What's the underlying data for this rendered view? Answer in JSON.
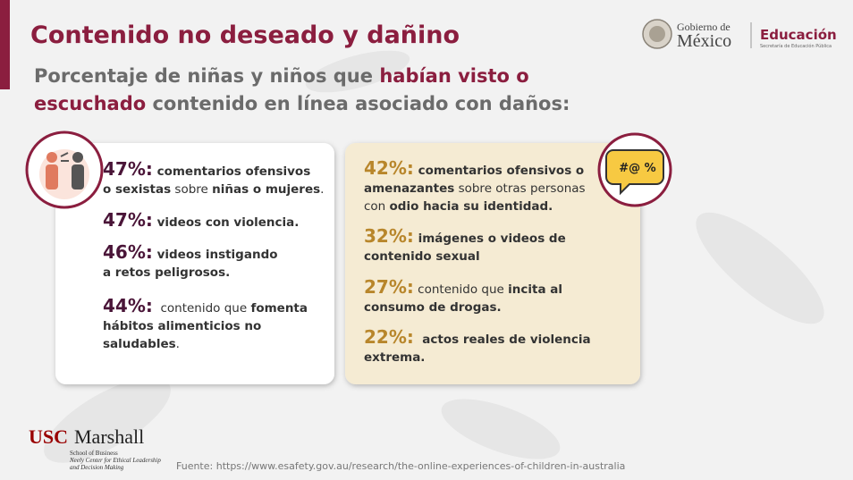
{
  "header": {
    "title": "Contenido no deseado y dañino",
    "subtitle": [
      [
        {
          "text": "Porcentaje de niñas y niños que ",
          "bold": false
        },
        {
          "text": "habían visto o",
          "bold": true
        }
      ],
      [
        {
          "text": "escuchado",
          "bold": true
        },
        {
          "text": " contenido en línea asociado con daños:",
          "bold": false
        }
      ]
    ]
  },
  "logo": {
    "gov_line1": "Gobierno de",
    "gov_line2": "México",
    "education": "Educación",
    "secretaria": "Secretaría de Educación Pública"
  },
  "left_card": {
    "items": [
      {
        "percent": "47%:",
        "lines": [
          [
            {
              "text": " comentarios ofensivos",
              "bold": true
            }
          ],
          [
            {
              "text": "o sexistas",
              "bold": true
            },
            {
              "text": " sobre ",
              "bold": false
            },
            {
              "text": "niñas o mujeres",
              "bold": true
            },
            {
              "text": ".",
              "bold": false
            }
          ]
        ]
      },
      {
        "percent": "47%:",
        "lines": [
          [
            {
              "text": " videos con violencia.",
              "bold": true
            }
          ]
        ]
      },
      {
        "percent": "46%:",
        "lines": [
          [
            {
              "text": " videos instigando",
              "bold": true
            }
          ],
          [
            {
              "text": "a retos peligrosos.",
              "bold": true
            }
          ]
        ]
      },
      {
        "percent": "44%:",
        "lines": [
          [
            {
              "text": "  contenido que ",
              "bold": false
            },
            {
              "text": "fomenta",
              "bold": true
            }
          ],
          [
            {
              "text": "hábitos alimenticios no",
              "bold": true
            }
          ],
          [
            {
              "text": "saludables",
              "bold": true
            },
            {
              "text": ".",
              "bold": false
            }
          ]
        ]
      }
    ]
  },
  "right_card": {
    "icon_text": "#@ %",
    "items": [
      {
        "percent": "42%:",
        "lines": [
          [
            {
              "text": " comentarios ofensivos o",
              "bold": true
            }
          ],
          [
            {
              "text": "amenazantes",
              "bold": true
            },
            {
              "text": " sobre otras personas",
              "bold": false
            }
          ],
          [
            {
              "text": "con ",
              "bold": false
            },
            {
              "text": "odio hacia su identidad.",
              "bold": true
            }
          ]
        ]
      },
      {
        "percent": "32%:",
        "lines": [
          [
            {
              "text": " imágenes o videos de",
              "bold": true
            }
          ],
          [
            {
              "text": "contenido sexual",
              "bold": true
            }
          ]
        ]
      },
      {
        "percent": "27%:",
        "lines": [
          [
            {
              "text": " contenido que ",
              "bold": false
            },
            {
              "text": "incita al",
              "bold": true
            }
          ],
          [
            {
              "text": "consumo de drogas.",
              "bold": true
            }
          ]
        ]
      },
      {
        "percent": "22%:",
        "lines": [
          [
            {
              "text": "  actos reales de violencia",
              "bold": true
            }
          ],
          [
            {
              "text": "extrema.",
              "bold": true
            }
          ]
        ]
      }
    ]
  },
  "footer": {
    "usc": "USC",
    "marshall": "Marshall",
    "school": "School of Business",
    "center_line1": "Neely Center for Ethical Leadership",
    "center_line2": "and Decision Making",
    "source": "Fuente: https://www.esafety.gov.au/research/the-online-experiences-of-children-in-australia"
  }
}
